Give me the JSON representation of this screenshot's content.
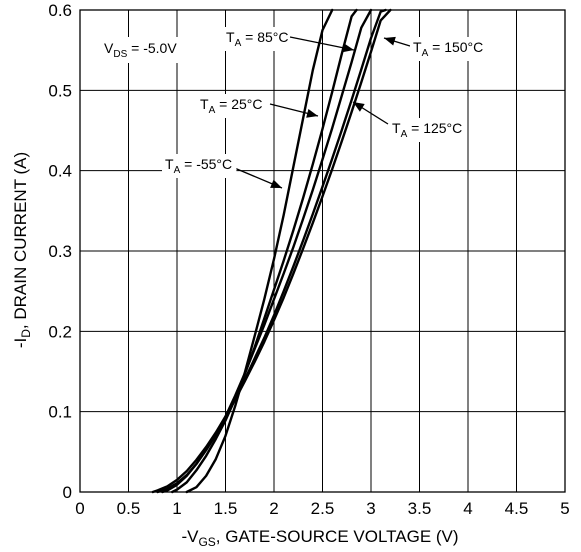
{
  "chart_data": {
    "type": "line",
    "xlabel": {
      "prefix": "-V",
      "sub": "GS",
      "suffix": ", GATE-SOURCE VOLTAGE (V)"
    },
    "ylabel": {
      "prefix": "-I",
      "sub": "D",
      "suffix": ", DRAIN CURRENT (A)"
    },
    "xlim": [
      0,
      5
    ],
    "ylim": [
      0,
      0.6
    ],
    "x_ticks": [
      "0",
      "0.5",
      "1",
      "1.5",
      "2",
      "2.5",
      "3",
      "3.5",
      "4",
      "4.5",
      "5"
    ],
    "y_ticks": [
      "0",
      "0.1",
      "0.2",
      "0.3",
      "0.4",
      "0.5",
      "0.6"
    ],
    "grid": true,
    "condition": {
      "prefix": "V",
      "sub": "DS",
      "suffix": " = -5.0V"
    },
    "series": [
      {
        "name": "T_A = -55°C",
        "label_prefix": "T",
        "label_sub": "A",
        "label_suffix": " = -55°C",
        "x": [
          1.1,
          1.2,
          1.3,
          1.4,
          1.5,
          1.6,
          1.7,
          1.8,
          1.9,
          2.0,
          2.1,
          2.2,
          2.3,
          2.4,
          2.5,
          2.6
        ],
        "y": [
          0.0,
          0.006,
          0.02,
          0.041,
          0.07,
          0.107,
          0.149,
          0.194,
          0.24,
          0.29,
          0.345,
          0.405,
          0.465,
          0.525,
          0.575,
          0.6
        ]
      },
      {
        "name": "T_A = 25°C",
        "label_prefix": "T",
        "label_sub": "A",
        "label_suffix": " = 25°C",
        "x": [
          0.95,
          1.0,
          1.1,
          1.2,
          1.3,
          1.4,
          1.5,
          1.6,
          1.7,
          1.8,
          1.9,
          2.0,
          2.1,
          2.2,
          2.3,
          2.4,
          2.5,
          2.6,
          2.7,
          2.8,
          2.85
        ],
        "y": [
          0.0,
          0.003,
          0.012,
          0.027,
          0.045,
          0.066,
          0.089,
          0.116,
          0.147,
          0.18,
          0.216,
          0.252,
          0.288,
          0.326,
          0.366,
          0.408,
          0.452,
          0.498,
          0.546,
          0.592,
          0.6
        ]
      },
      {
        "name": "T_A = 85°C",
        "label_prefix": "T",
        "label_sub": "A",
        "label_suffix": " = 85°C",
        "x": [
          0.85,
          0.9,
          1.0,
          1.1,
          1.2,
          1.3,
          1.4,
          1.5,
          1.6,
          1.7,
          1.8,
          1.9,
          2.0,
          2.1,
          2.2,
          2.3,
          2.4,
          2.5,
          2.6,
          2.7,
          2.8,
          2.9,
          3.0
        ],
        "y": [
          0.0,
          0.002,
          0.009,
          0.02,
          0.035,
          0.053,
          0.073,
          0.094,
          0.12,
          0.148,
          0.178,
          0.208,
          0.24,
          0.272,
          0.305,
          0.34,
          0.376,
          0.414,
          0.453,
          0.494,
          0.535,
          0.578,
          0.6
        ]
      },
      {
        "name": "T_A = 125°C",
        "label_prefix": "T",
        "label_sub": "A",
        "label_suffix": " = 125°C",
        "x": [
          0.8,
          0.9,
          1.0,
          1.1,
          1.2,
          1.3,
          1.4,
          1.5,
          1.6,
          1.7,
          1.8,
          1.9,
          2.0,
          2.1,
          2.2,
          2.3,
          2.4,
          2.5,
          2.6,
          2.7,
          2.8,
          2.9,
          3.0,
          3.1,
          3.15
        ],
        "y": [
          0.0,
          0.004,
          0.011,
          0.021,
          0.035,
          0.052,
          0.071,
          0.092,
          0.116,
          0.14,
          0.166,
          0.192,
          0.22,
          0.25,
          0.281,
          0.313,
          0.346,
          0.38,
          0.415,
          0.451,
          0.488,
          0.526,
          0.565,
          0.598,
          0.6
        ]
      },
      {
        "name": "T_A = 150°C",
        "label_prefix": "T",
        "label_sub": "A",
        "label_suffix": " = 150°C",
        "x": [
          0.75,
          0.8,
          0.9,
          1.0,
          1.1,
          1.2,
          1.3,
          1.4,
          1.5,
          1.6,
          1.7,
          1.8,
          1.9,
          2.0,
          2.1,
          2.2,
          2.3,
          2.4,
          2.5,
          2.6,
          2.7,
          2.8,
          2.9,
          3.0,
          3.1,
          3.2
        ],
        "y": [
          0.0,
          0.002,
          0.007,
          0.015,
          0.026,
          0.04,
          0.056,
          0.074,
          0.094,
          0.115,
          0.138,
          0.162,
          0.187,
          0.214,
          0.242,
          0.272,
          0.303,
          0.335,
          0.368,
          0.402,
          0.437,
          0.473,
          0.51,
          0.548,
          0.587,
          0.6
        ]
      }
    ]
  }
}
